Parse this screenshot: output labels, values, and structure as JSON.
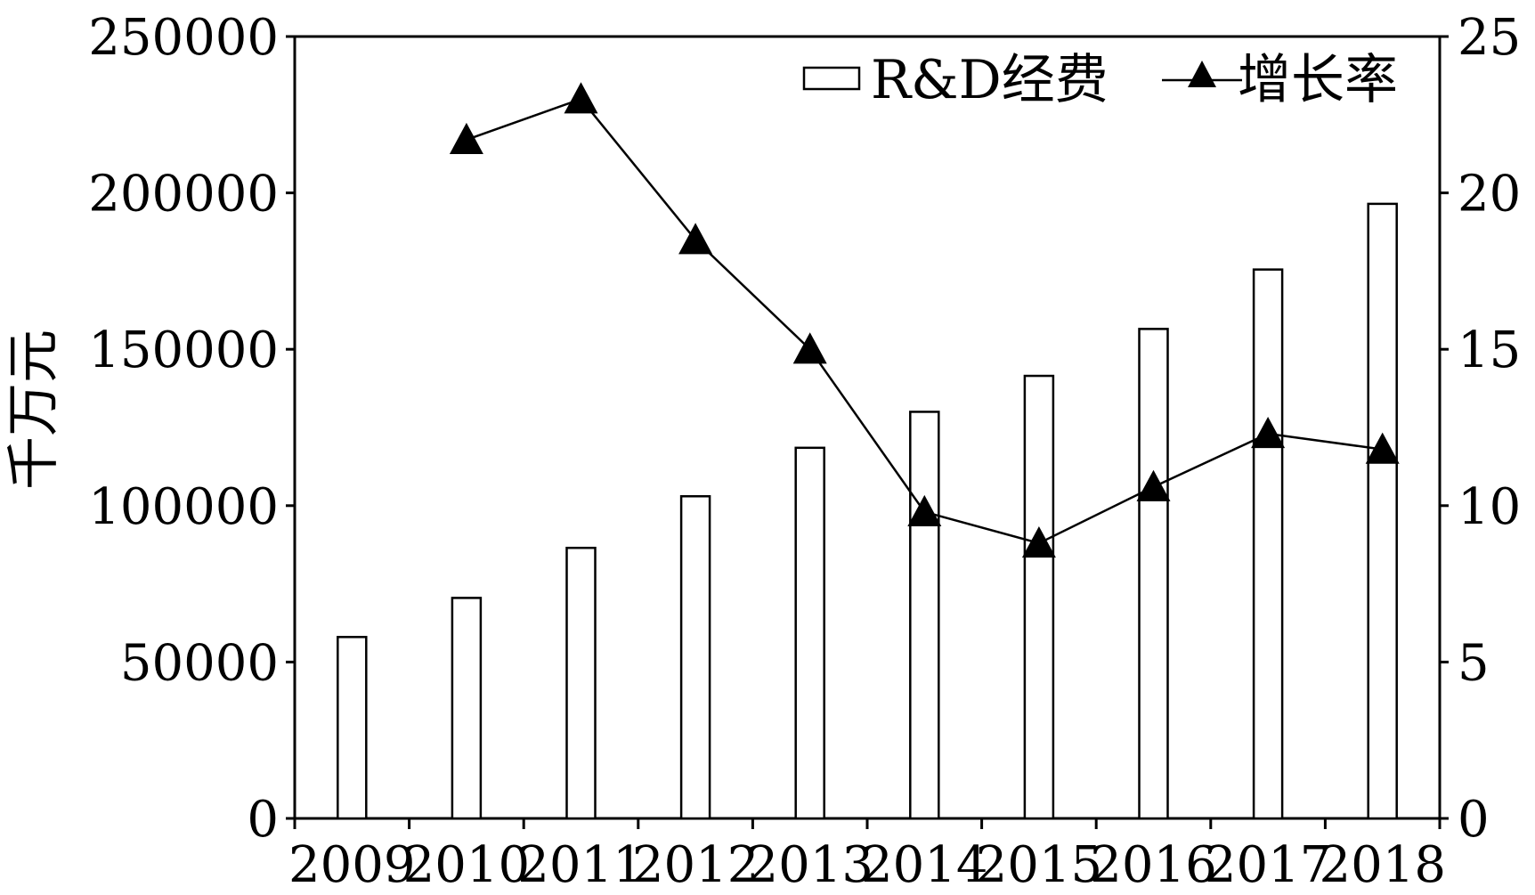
{
  "chart_data": {
    "type": "bar",
    "categories": [
      "2009",
      "2010",
      "2011",
      "2012",
      "2013",
      "2014",
      "2015",
      "2016",
      "2017",
      "2018"
    ],
    "series": [
      {
        "name": "R&D经费",
        "type": "bar",
        "axis": "left",
        "values": [
          58000,
          70500,
          86500,
          103000,
          118500,
          130000,
          141500,
          156500,
          175500,
          196500
        ]
      },
      {
        "name": "增长率",
        "type": "line",
        "axis": "right",
        "marker": "triangle",
        "values": [
          null,
          21.7,
          23.0,
          18.5,
          15.0,
          9.8,
          8.8,
          10.6,
          12.3,
          11.8
        ]
      }
    ],
    "title": "",
    "xlabel": "",
    "ylabel": "千万元",
    "ylabel_right": "",
    "ylim": [
      0,
      250000
    ],
    "ylim_right": [
      0,
      25
    ],
    "yticks": [
      "0",
      "50000",
      "100000",
      "150000",
      "200000",
      "250000"
    ],
    "yticks_right": [
      "0",
      "5",
      "10",
      "15",
      "20",
      "25"
    ],
    "grid": false,
    "legend_position": "top-right"
  }
}
